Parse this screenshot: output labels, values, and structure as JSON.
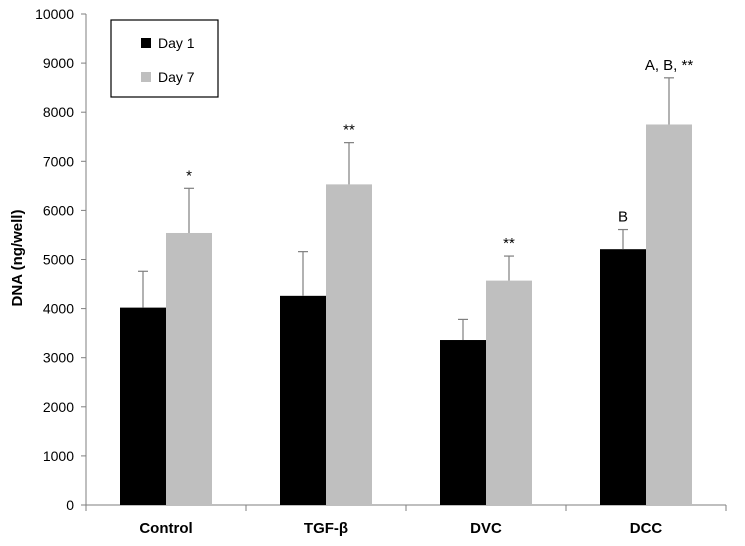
{
  "chart_data": {
    "type": "bar",
    "title": "",
    "xlabel": "",
    "ylabel": "DNA (ng/well)",
    "ylim": [
      0,
      10000
    ],
    "yticks": [
      0,
      1000,
      2000,
      3000,
      4000,
      5000,
      6000,
      7000,
      8000,
      9000,
      10000
    ],
    "grid": false,
    "legend_position": "top-left",
    "categories": [
      "Control",
      "TGF-β",
      "DVC",
      "DCC"
    ],
    "series": [
      {
        "name": "Day 1",
        "color": "#000000",
        "values": [
          4020,
          4260,
          3360,
          5210
        ],
        "errors": [
          740,
          900,
          420,
          400
        ],
        "annotations": [
          "",
          "",
          "",
          "B"
        ]
      },
      {
        "name": "Day 7",
        "color": "#bfbfbf",
        "values": [
          5540,
          6530,
          4570,
          7750
        ],
        "errors": [
          910,
          850,
          500,
          950
        ],
        "annotations": [
          "*",
          "**",
          "**",
          "A, B, **"
        ]
      }
    ]
  }
}
